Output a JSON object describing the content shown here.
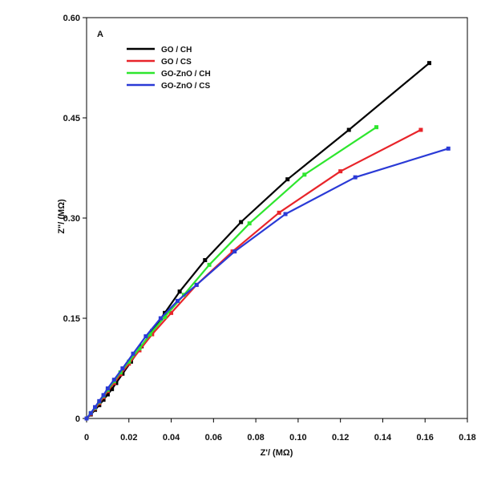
{
  "chart_data": {
    "type": "line",
    "panel_label": "A",
    "xlabel": "Z'/ (MΩ)",
    "ylabel": "Z\"/ (MΩ)",
    "xlim": [
      0,
      0.18
    ],
    "ylim": [
      0,
      0.6
    ],
    "xticks": [
      0,
      0.02,
      0.04,
      0.06,
      0.08,
      0.1,
      0.12,
      0.14,
      0.16,
      0.18
    ],
    "xtick_labels": [
      "0",
      "0.02",
      "0.04",
      "0.06",
      "0.08",
      "0.10",
      "0.12",
      "0.14",
      "0.16",
      "0.18"
    ],
    "yticks": [
      0,
      0.15,
      0.3,
      0.45,
      0.6
    ],
    "ytick_labels": [
      "0",
      "0.15",
      "0.30",
      "0.45",
      "0.60"
    ],
    "grid": false,
    "legend_position": "top-left",
    "series": [
      {
        "name": "GO / CH",
        "color": "#000000",
        "x": [
          0.0,
          0.002,
          0.004,
          0.006,
          0.008,
          0.01,
          0.012,
          0.014,
          0.017,
          0.021,
          0.026,
          0.031,
          0.037,
          0.044,
          0.056,
          0.073,
          0.095,
          0.124,
          0.162
        ],
        "y": [
          0.0,
          0.006,
          0.013,
          0.02,
          0.028,
          0.036,
          0.044,
          0.053,
          0.067,
          0.085,
          0.108,
          0.131,
          0.158,
          0.19,
          0.237,
          0.294,
          0.358,
          0.432,
          0.532
        ]
      },
      {
        "name": "GO / CS",
        "color": "#e8242a",
        "x": [
          0.0,
          0.002,
          0.004,
          0.006,
          0.008,
          0.01,
          0.013,
          0.016,
          0.02,
          0.025,
          0.031,
          0.04,
          0.052,
          0.069,
          0.091,
          0.12,
          0.158
        ],
        "y": [
          0.0,
          0.007,
          0.015,
          0.023,
          0.032,
          0.041,
          0.053,
          0.066,
          0.082,
          0.102,
          0.126,
          0.158,
          0.2,
          0.25,
          0.308,
          0.37,
          0.432
        ]
      },
      {
        "name": "GO-ZnO / CH",
        "color": "#2ee62e",
        "x": [
          0.0,
          0.002,
          0.004,
          0.006,
          0.008,
          0.01,
          0.013,
          0.016,
          0.02,
          0.025,
          0.03,
          0.037,
          0.046,
          0.058,
          0.077,
          0.103,
          0.137
        ],
        "y": [
          0.0,
          0.008,
          0.016,
          0.025,
          0.034,
          0.043,
          0.056,
          0.069,
          0.085,
          0.105,
          0.126,
          0.152,
          0.185,
          0.23,
          0.292,
          0.365,
          0.436
        ]
      },
      {
        "name": "GO-ZnO / CS",
        "color": "#2a3ad6",
        "x": [
          0.0,
          0.002,
          0.004,
          0.006,
          0.008,
          0.01,
          0.013,
          0.017,
          0.022,
          0.028,
          0.035,
          0.043,
          0.052,
          0.07,
          0.094,
          0.127,
          0.171
        ],
        "y": [
          0.0,
          0.008,
          0.017,
          0.026,
          0.035,
          0.045,
          0.058,
          0.075,
          0.097,
          0.123,
          0.15,
          0.176,
          0.2,
          0.25,
          0.306,
          0.361,
          0.404
        ]
      }
    ]
  }
}
